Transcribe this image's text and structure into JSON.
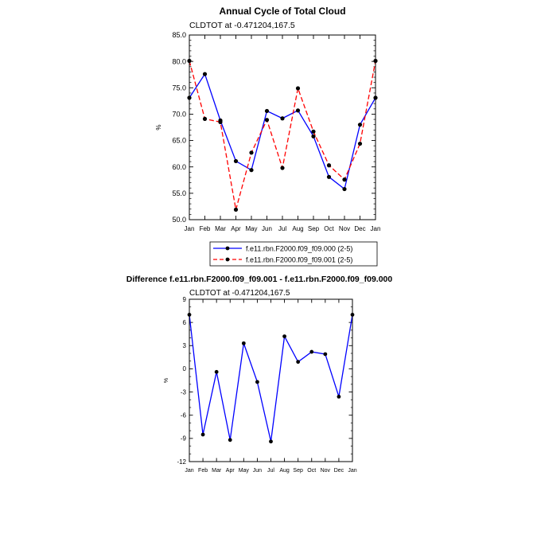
{
  "chart_data": [
    {
      "type": "line",
      "title": "Annual Cycle of Total Cloud",
      "subtitle": "CLDTOT at -0.471204,167.5",
      "xlabel": "",
      "ylabel": "%",
      "categories": [
        "Jan",
        "Feb",
        "Mar",
        "Apr",
        "May",
        "Jun",
        "Jul",
        "Aug",
        "Sep",
        "Oct",
        "Nov",
        "Dec",
        "Jan"
      ],
      "ylim": [
        50,
        85
      ],
      "yticks": [
        50,
        55,
        60,
        65,
        70,
        75,
        80,
        85
      ],
      "ytick_labels": [
        "50.0",
        "55.0",
        "60.0",
        "65.0",
        "70.0",
        "75.0",
        "80.0",
        "85.0"
      ],
      "grid": false,
      "legend_position": "bottom",
      "series": [
        {
          "name": "f.e11.rbn.F2000.f09_f09.000 (2-5)",
          "color": "#0000ff",
          "dash": "solid",
          "values": [
            73.1,
            77.6,
            68.8,
            61.1,
            59.4,
            70.6,
            69.2,
            70.7,
            65.8,
            58.1,
            55.8,
            68.0,
            73.1
          ]
        },
        {
          "name": "f.e11.rbn.F2000.f09_f09.001 (2-5)",
          "color": "#ff0000",
          "dash": "dashed",
          "values": [
            80.1,
            69.1,
            68.5,
            51.9,
            62.7,
            68.9,
            59.8,
            74.9,
            66.7,
            60.3,
            57.6,
            64.4,
            80.1
          ]
        }
      ]
    },
    {
      "type": "line",
      "title": "Difference f.e11.rbn.F2000.f09_f09.001 - f.e11.rbn.F2000.f09_f09.000",
      "subtitle": "CLDTOT at -0.471204,167.5",
      "xlabel": "",
      "ylabel": "%",
      "categories": [
        "Jan",
        "Feb",
        "Mar",
        "Apr",
        "May",
        "Jun",
        "Jul",
        "Aug",
        "Sep",
        "Oct",
        "Nov",
        "Dec",
        "Jan"
      ],
      "ylim": [
        -12,
        9
      ],
      "yticks": [
        -12,
        -9,
        -6,
        -3,
        0,
        3,
        6,
        9
      ],
      "ytick_labels": [
        "-12",
        "-9",
        "-6",
        "-3",
        "0",
        "3",
        "6",
        "9"
      ],
      "grid": false,
      "series": [
        {
          "color": "#0000ff",
          "dash": "solid",
          "values": [
            7.0,
            -8.5,
            -0.4,
            -9.2,
            3.3,
            -1.7,
            -9.4,
            4.2,
            0.9,
            2.2,
            1.9,
            -3.6,
            7.0
          ]
        }
      ]
    }
  ]
}
